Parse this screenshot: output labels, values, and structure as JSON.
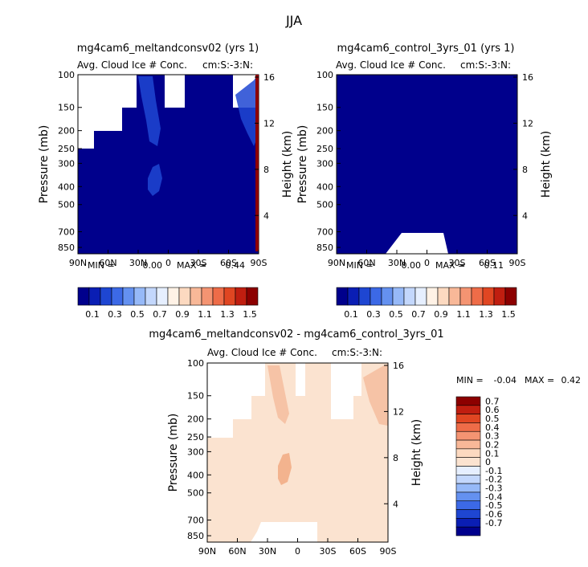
{
  "title": "JJA",
  "colors": {
    "bg": "#ffffff",
    "ink": "#000000",
    "navy": "#00008c",
    "blue_mid": "#1e46d2",
    "diff_light": "#fbe3d0",
    "diff_mid": "#f6c3a6",
    "diff_strong": "#f3b38e"
  },
  "chart_data": [
    {
      "type": "heatmap",
      "title": "mg4cam6_meltandconsv02 (yrs 1)",
      "subtitle": "Avg. Cloud Ice # Conc.",
      "units_label": "cm:S:-3:N:",
      "xlabel": "",
      "ylabel": "Pressure (mb)",
      "y2label": "Height (km)",
      "x_ticks": [
        "90N",
        "60N",
        "30N",
        "0",
        "30S",
        "60S",
        "90S"
      ],
      "y_ticks": [
        "100",
        "150",
        "200",
        "250",
        "300",
        "400",
        "500",
        "700",
        "850"
      ],
      "y_tick_values": [
        100,
        150,
        200,
        250,
        300,
        400,
        500,
        700,
        850
      ],
      "y2_ticks": [
        "16",
        "12",
        "8",
        "4"
      ],
      "y2_tick_values": [
        16,
        12,
        8,
        4
      ],
      "xlim": [
        90,
        -90
      ],
      "ylim": [
        100,
        920
      ],
      "stats": {
        "min_label": "MIN =",
        "min": "0.00",
        "max_label": "MAX =",
        "max": "0.44"
      }
    },
    {
      "type": "heatmap",
      "title": "mg4cam6_control_3yrs_01 (yrs 1)",
      "subtitle": "Avg. Cloud Ice # Conc.",
      "units_label": "cm:S:-3:N:",
      "xlabel": "",
      "ylabel": "Pressure (mb)",
      "y2label": "Height (km)",
      "x_ticks": [
        "90N",
        "60N",
        "30N",
        "0",
        "30S",
        "60S",
        "90S"
      ],
      "y_ticks": [
        "100",
        "150",
        "200",
        "250",
        "300",
        "400",
        "500",
        "700",
        "850"
      ],
      "y_tick_values": [
        100,
        150,
        200,
        250,
        300,
        400,
        500,
        700,
        850
      ],
      "y2_ticks": [
        "16",
        "12",
        "8",
        "4"
      ],
      "y2_tick_values": [
        16,
        12,
        8,
        4
      ],
      "xlim": [
        90,
        -90
      ],
      "ylim": [
        100,
        920
      ],
      "stats": {
        "min_label": "MIN =",
        "min": "0.00",
        "max_label": "MAX =",
        "max": "0.11"
      }
    },
    {
      "type": "heatmap",
      "title": "mg4cam6_meltandconsv02 - mg4cam6_control_3yrs_01",
      "subtitle": "Avg. Cloud Ice # Conc.",
      "units_label": "cm:S:-3:N:",
      "xlabel": "",
      "ylabel": "Pressure (mb)",
      "y2label": "Height (km)",
      "x_ticks": [
        "90N",
        "60N",
        "30N",
        "0",
        "30S",
        "60S",
        "90S"
      ],
      "y_ticks": [
        "100",
        "150",
        "200",
        "250",
        "300",
        "400",
        "500",
        "700",
        "850"
      ],
      "y_tick_values": [
        100,
        150,
        200,
        250,
        300,
        400,
        500,
        700,
        850
      ],
      "y2_ticks": [
        "16",
        "12",
        "8",
        "4"
      ],
      "y2_tick_values": [
        16,
        12,
        8,
        4
      ],
      "xlim": [
        90,
        -90
      ],
      "ylim": [
        100,
        920
      ],
      "stats": {
        "min_label": "MIN =",
        "min": "-0.04",
        "max_label": "MAX =",
        "max": "0.42"
      }
    }
  ],
  "colorbar_abs": {
    "labels": [
      "0.1",
      "0.3",
      "0.5",
      "0.7",
      "0.9",
      "1.1",
      "1.3",
      "1.5"
    ],
    "colors": [
      "#00008c",
      "#0a1eb4",
      "#1e46d2",
      "#3c69e6",
      "#6491f0",
      "#96b9f8",
      "#c3d7fc",
      "#e6efff",
      "#fff2e6",
      "#fcd9c0",
      "#f8b898",
      "#f49472",
      "#ee6c48",
      "#e04622",
      "#c01e10",
      "#8c0000"
    ]
  },
  "colorbar_diff": {
    "labels": [
      "0.7",
      "0.6",
      "0.5",
      "0.4",
      "0.3",
      "0.2",
      "0.1",
      "0",
      "-0.1",
      "-0.2",
      "-0.3",
      "-0.4",
      "-0.5",
      "-0.6",
      "-0.7"
    ],
    "colors": [
      "#8c0000",
      "#c01e10",
      "#e04622",
      "#ee6c48",
      "#f49472",
      "#f8b898",
      "#fcd9c0",
      "#fbe3d0",
      "#e6efff",
      "#c3d7fc",
      "#96b9f8",
      "#6491f0",
      "#3c69e6",
      "#1e46d2",
      "#0a1eb4",
      "#00008c"
    ]
  }
}
